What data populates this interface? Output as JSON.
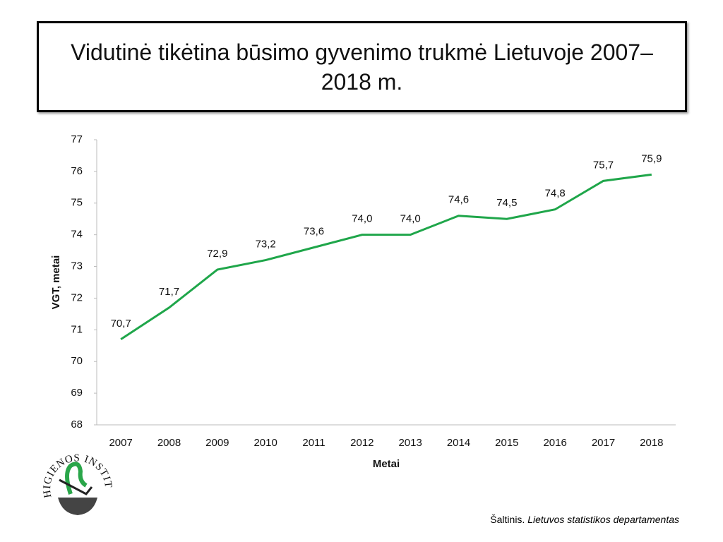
{
  "chart_data": {
    "type": "line",
    "title": "Vidutinė tikėtina būsimo gyvenimo trukmė Lietuvoje 2007–2018 m.",
    "categories": [
      "2007",
      "2008",
      "2009",
      "2010",
      "2011",
      "2012",
      "2013",
      "2014",
      "2015",
      "2016",
      "2017",
      "2018"
    ],
    "values": [
      70.7,
      71.7,
      72.9,
      73.2,
      73.6,
      74.0,
      74.0,
      74.6,
      74.5,
      74.8,
      75.7,
      75.9
    ],
    "value_labels": [
      "70,7",
      "71,7",
      "72,9",
      "73,2",
      "73,6",
      "74,0",
      "74,0",
      "74,6",
      "74,5",
      "74,8",
      "75,7",
      "75,9"
    ],
    "color": "#1fa64a",
    "ylim": [
      68,
      77
    ],
    "yticks": [
      68,
      69,
      70,
      71,
      72,
      73,
      74,
      75,
      76,
      77
    ],
    "y_label": "VGT, metai",
    "x_label": "Metai",
    "grid": false
  },
  "source_label": "Šaltinis.",
  "source": "Lietuvos statistikos departamentas",
  "logo_text": "HIGIENOS INSTITUTAS"
}
